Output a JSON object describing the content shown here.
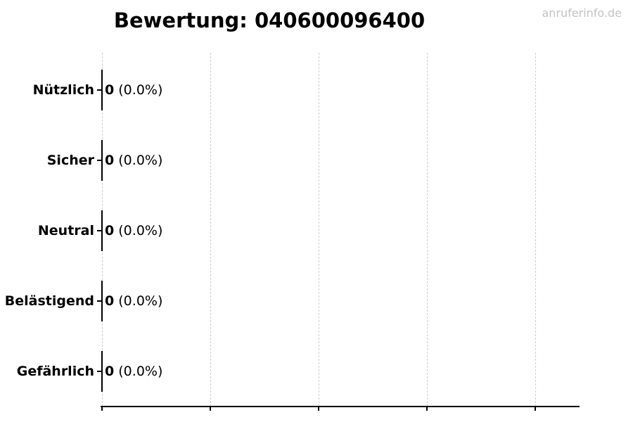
{
  "header": {
    "title": "Bewertung: 040600096400",
    "watermark": "anruferinfo.de"
  },
  "colors": {
    "text": "#000000",
    "gridline": "#cfcfcf",
    "watermark": "#c3c3c3",
    "axis": "#000000"
  },
  "chart_data": {
    "type": "bar",
    "orientation": "horizontal",
    "title": "Bewertung: 040600096400",
    "categories": [
      "Nützlich",
      "Sicher",
      "Neutral",
      "Belästigend",
      "Gefährlich"
    ],
    "values": [
      0,
      0,
      0,
      0,
      0
    ],
    "percentages": [
      0.0,
      0.0,
      0.0,
      0.0,
      0.0
    ],
    "bar_labels": [
      "0 (0.0%)",
      "0 (0.0%)",
      "0 (0.0%)",
      "0 (0.0%)",
      "0 (0.0%)"
    ],
    "grid": "vertical dashed, 5 gridlines, x tick labels not visible",
    "legend": "none",
    "rows": [
      {
        "label": "Nützlich",
        "value": "0",
        "pct": " (0.0%)"
      },
      {
        "label": "Sicher",
        "value": "0",
        "pct": " (0.0%)"
      },
      {
        "label": "Neutral",
        "value": "0",
        "pct": " (0.0%)"
      },
      {
        "label": "Belästigend",
        "value": "0",
        "pct": " (0.0%)"
      },
      {
        "label": "Gefährlich",
        "value": "0",
        "pct": " (0.0%)"
      }
    ]
  }
}
